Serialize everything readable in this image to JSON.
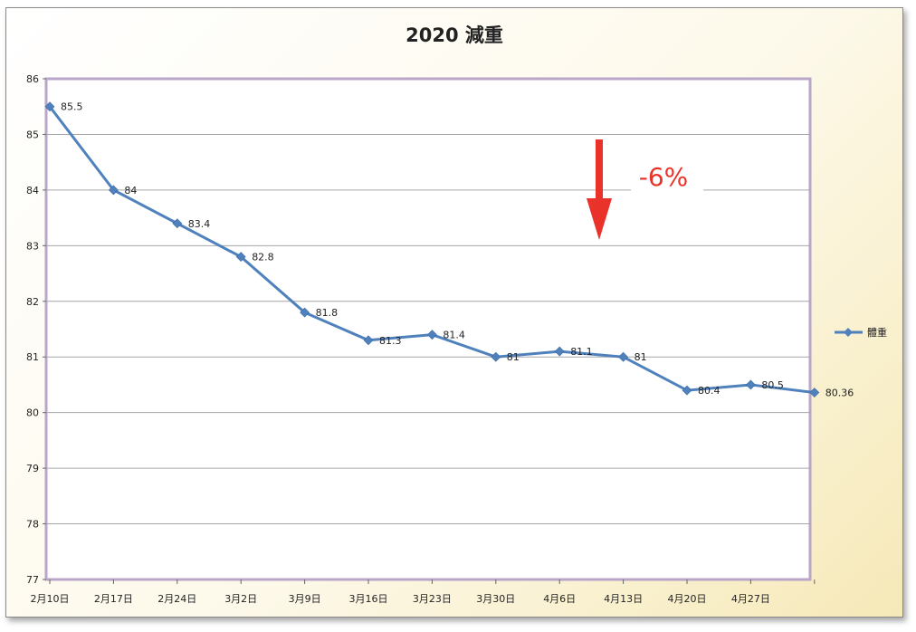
{
  "chart_data": {
    "type": "line",
    "title": "2020 減重",
    "categories": [
      "2月10日",
      "2月17日",
      "2月24日",
      "3月2日",
      "3月9日",
      "3月16日",
      "3月23日",
      "3月30日",
      "4月6日",
      "4月13日",
      "4月20日",
      "4月27日",
      ""
    ],
    "series": [
      {
        "name": "體重",
        "values": [
          85.5,
          84,
          83.4,
          82.8,
          81.8,
          81.3,
          81.4,
          81,
          81.1,
          81,
          80.4,
          80.5,
          80.36
        ],
        "labels": [
          "85.5",
          "84",
          "83.4",
          "82.8",
          "81.8",
          "81.3",
          "81.4",
          "81",
          "81.1",
          "81",
          "80.4",
          "80.5",
          "80.36"
        ]
      }
    ],
    "ylim": [
      77,
      86
    ],
    "yticks": [
      "77",
      "78",
      "79",
      "80",
      "81",
      "82",
      "83",
      "84",
      "85",
      "86"
    ],
    "grid": true,
    "legend_placement": "right",
    "annotation": {
      "text": "-6%",
      "arrow": "down"
    },
    "colors": {
      "line": "#4f81bd",
      "annotation": "#e8322a",
      "grid": "#a6a6a6",
      "plot_border": "#b9a6c9"
    }
  }
}
